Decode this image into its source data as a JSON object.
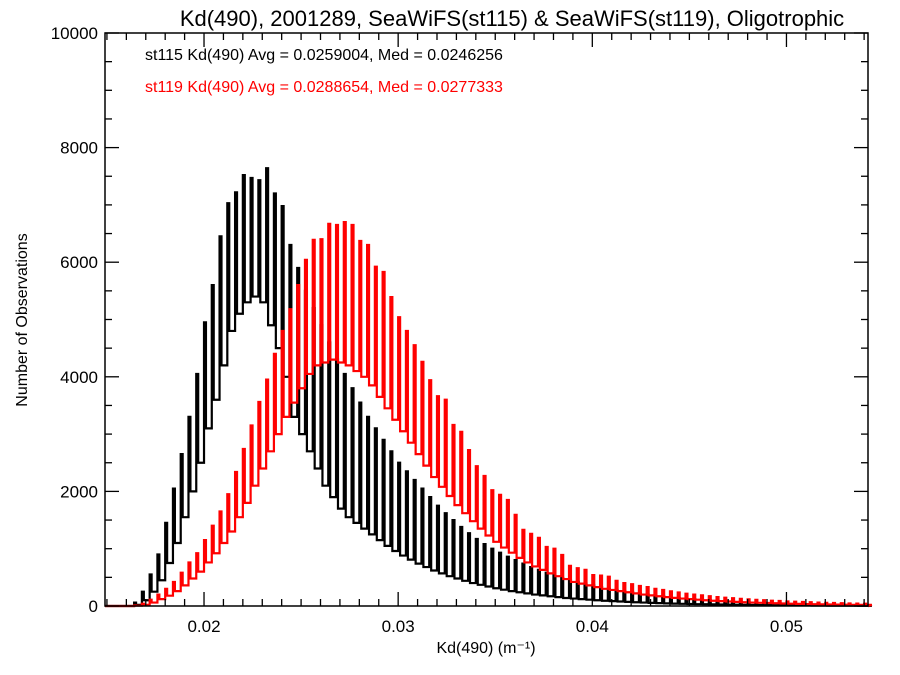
{
  "chart_data": {
    "type": "bar",
    "subtype": "step-histogram",
    "title": "Kd(490), 2001289, SeaWiFS(st115) & SeaWiFS(st119), Oligotrophic",
    "xlabel": "Kd(490) (m⁻¹)",
    "ylabel": "Number of Observations",
    "xlim": [
      0.0149,
      0.0542
    ],
    "ylim": [
      0,
      10000
    ],
    "xticks": [
      0.02,
      0.03,
      0.04,
      0.05
    ],
    "xtick_labels": [
      "0.02",
      "0.03",
      "0.04",
      "0.05"
    ],
    "x_minor_step": 0.001,
    "yticks": [
      0,
      2000,
      4000,
      6000,
      8000,
      10000
    ],
    "ytick_labels": [
      "0",
      "2000",
      "4000",
      "6000",
      "8000",
      "10000"
    ],
    "y_minor_step": 500,
    "grid": false,
    "legend_placement": "top-left",
    "group_start": 0.0164,
    "group_width": 0.0004,
    "spike_width": 0.0001,
    "series": [
      {
        "name": "st115",
        "color": "#000000",
        "legend": "st115 Kd(490) Avg = 0.0259004, Med = 0.0246256",
        "avg": 0.0259004,
        "median": 0.0246256,
        "high": [
          60,
          250,
          550,
          900,
          1450,
          2050,
          2650,
          3300,
          4050,
          4950,
          5600,
          6450,
          7030,
          7220,
          7520,
          7470,
          7430,
          7640,
          7200,
          6980,
          6300,
          5900,
          5500,
          5200,
          4900,
          4600,
          4300,
          4050,
          3800,
          3550,
          3300,
          3100,
          2900,
          2700,
          2500,
          2350,
          2200,
          2050,
          1900,
          1750,
          1620,
          1500,
          1380,
          1270,
          1170,
          1080,
          1000,
          930,
          860,
          800,
          740,
          680,
          630,
          580,
          530,
          490,
          450,
          420,
          390,
          360,
          330,
          300,
          280,
          260,
          240,
          220,
          200,
          185,
          170,
          155,
          140,
          130,
          120,
          110,
          100,
          90,
          85,
          78,
          70,
          64,
          58,
          53,
          48,
          44,
          40,
          36,
          33,
          30,
          27,
          25,
          22,
          20,
          18,
          16,
          15
        ],
        "low": [
          20,
          100,
          250,
          450,
          750,
          1100,
          1550,
          2000,
          2500,
          3100,
          3600,
          4200,
          4800,
          5100,
          5300,
          5400,
          5300,
          4900,
          4500,
          4000,
          3300,
          3000,
          2700,
          2400,
          2100,
          1900,
          1700,
          1550,
          1450,
          1350,
          1250,
          1150,
          1050,
          960,
          880,
          810,
          740,
          680,
          620,
          570,
          520,
          480,
          440,
          400,
          370,
          340,
          310,
          285,
          260,
          240,
          220,
          200,
          185,
          170,
          155,
          140,
          130,
          120,
          110,
          100,
          92,
          85,
          78,
          72,
          66,
          60,
          55,
          50,
          46,
          42,
          38,
          35,
          32,
          30,
          28,
          26,
          24,
          22,
          20,
          18,
          16,
          15,
          14,
          13,
          12,
          11,
          10,
          9,
          8,
          7,
          6,
          5,
          5,
          4,
          4
        ]
      },
      {
        "name": "st119",
        "color": "#ff0000",
        "legend": "st119 Kd(490) Avg = 0.0288654, Med = 0.0277333",
        "avg": 0.0288654,
        "median": 0.0277333,
        "high": [
          10,
          40,
          110,
          200,
          300,
          420,
          580,
          760,
          920,
          1150,
          1400,
          1650,
          1950,
          2340,
          2740,
          3150,
          3560,
          3950,
          4400,
          4800,
          5180,
          5600,
          6040,
          6390,
          6400,
          6670,
          6650,
          6700,
          6650,
          6370,
          6300,
          5920,
          5830,
          5390,
          5040,
          4800,
          4550,
          4260,
          3940,
          3660,
          3600,
          3160,
          3040,
          2720,
          2440,
          2270,
          2020,
          1940,
          1850,
          1590,
          1330,
          1260,
          1190,
          1030,
          1000,
          890,
          700,
          660,
          630,
          540,
          530,
          510,
          440,
          400,
          380,
          350,
          330,
          300,
          280,
          255,
          235,
          215,
          200,
          185,
          170,
          155,
          145,
          135,
          125,
          115,
          108,
          100,
          93,
          87,
          80,
          75,
          70,
          65,
          60,
          56,
          52,
          48,
          45,
          42,
          40
        ],
        "low": [
          5,
          20,
          60,
          120,
          180,
          260,
          360,
          480,
          600,
          760,
          920,
          1100,
          1300,
          1550,
          1800,
          2100,
          2400,
          2700,
          3000,
          3300,
          3550,
          3800,
          4050,
          4200,
          4250,
          4300,
          4250,
          4200,
          4100,
          4000,
          3850,
          3650,
          3450,
          3250,
          3050,
          2850,
          2650,
          2450,
          2250,
          2080,
          1920,
          1760,
          1620,
          1480,
          1350,
          1230,
          1120,
          1020,
          930,
          840,
          760,
          690,
          630,
          570,
          520,
          470,
          420,
          390,
          360,
          330,
          300,
          280,
          260,
          240,
          220,
          200,
          185,
          170,
          155,
          142,
          130,
          120,
          110,
          100,
          92,
          85,
          78,
          72,
          66,
          60,
          56,
          52,
          48,
          44,
          40,
          37,
          34,
          31,
          29,
          27,
          25,
          23,
          21,
          20,
          19
        ]
      }
    ]
  }
}
